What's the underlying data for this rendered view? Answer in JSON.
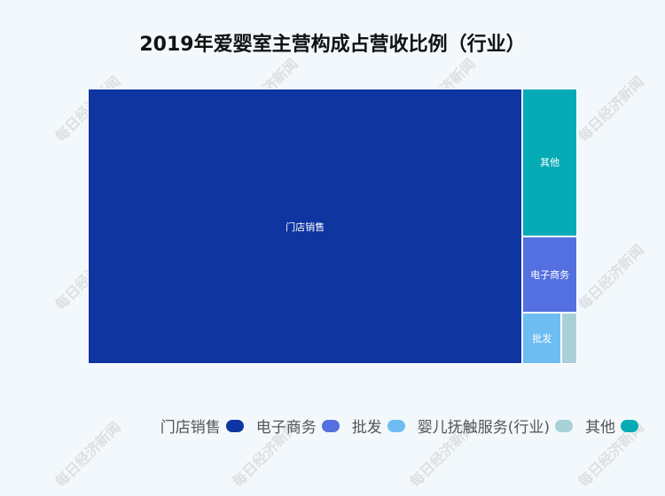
{
  "watermark": "每日经济新闻",
  "chart_data": {
    "type": "treemap",
    "title": "2019年爱婴室主营构成占营收比例（行业）",
    "legend_position": "bottom-right",
    "items": [
      {
        "name": "门店销售",
        "value": 88.8,
        "color": "#0e35a0"
      },
      {
        "name": "电子商务",
        "value": 3.1,
        "color": "#5470e0"
      },
      {
        "name": "批发",
        "value": 1.5,
        "color": "#6dbdf2"
      },
      {
        "name": "婴儿抚触服务(行业)",
        "value": 0.6,
        "color": "#a9d0d9"
      },
      {
        "name": "其他",
        "value": 6.0,
        "color": "#05abb5"
      }
    ]
  }
}
